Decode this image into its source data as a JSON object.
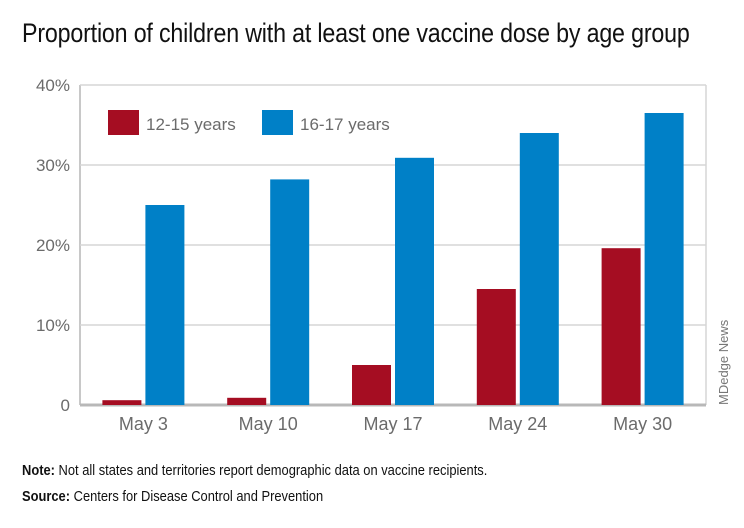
{
  "chart_data": {
    "type": "bar",
    "title": "Proportion of children with at least one vaccine dose by age group",
    "categories": [
      "May 3",
      "May 10",
      "May 17",
      "May 24",
      "May 30"
    ],
    "series": [
      {
        "name": "12-15 years",
        "color": "#a50d22",
        "values": [
          0.6,
          0.9,
          5.0,
          14.5,
          19.6
        ]
      },
      {
        "name": "16-17 years",
        "color": "#0080c7",
        "values": [
          25.0,
          28.2,
          30.9,
          34.0,
          36.5
        ]
      }
    ],
    "ylim": [
      0,
      40
    ],
    "yticks": [
      0,
      10,
      20,
      30,
      40
    ],
    "ytick_labels": [
      "0",
      "10%",
      "20%",
      "30%",
      "40%"
    ],
    "xlabel": "",
    "ylabel": "",
    "grid": true,
    "legend_position": "top-left"
  },
  "credit": "MDedge News",
  "note": {
    "label": "Note:",
    "text": " Not all states and territories report demographic data on vaccine recipients."
  },
  "source": {
    "label": "Source:",
    "text": " Centers for Disease Control and Prevention"
  }
}
